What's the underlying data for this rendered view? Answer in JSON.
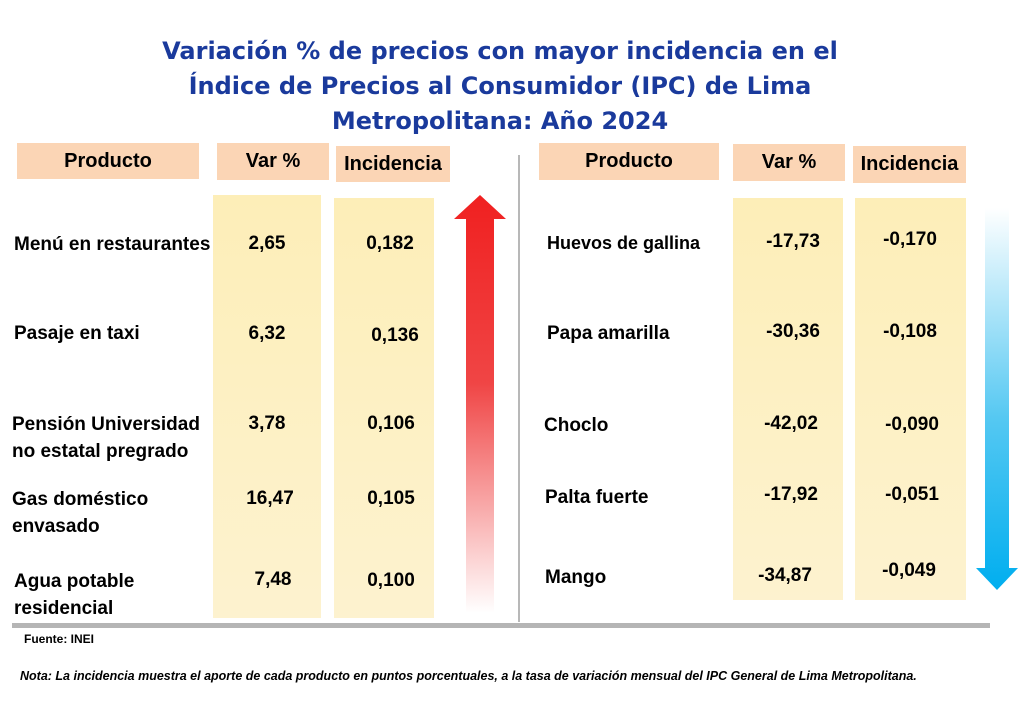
{
  "title": [
    "Variación % de precios con mayor incidencia en el",
    "Índice de Precios al Consumidor (IPC) de Lima",
    "Metropolitana: Año 2024"
  ],
  "headers": {
    "producto": "Producto",
    "var": "Var %",
    "incidencia": "Incidencia"
  },
  "increases": [
    {
      "producto": "Menú en restaurantes",
      "var": "2,65",
      "incidencia": "0,182"
    },
    {
      "producto": "Pasaje en taxi",
      "var": "6,32",
      "incidencia": "0,136"
    },
    {
      "producto": "Pensión Universidad no estatal pregrado",
      "var": "3,78",
      "incidencia": "0,106"
    },
    {
      "producto": "Gas doméstico envasado",
      "var": "16,47",
      "incidencia": "0,105"
    },
    {
      "producto": "Agua potable residencial",
      "var": "7,48",
      "incidencia": "0,100"
    }
  ],
  "decreases": [
    {
      "producto": "Huevos de gallina",
      "var": "-17,73",
      "incidencia": "-0,170"
    },
    {
      "producto": "Papa amarilla",
      "var": "-30,36",
      "incidencia": "-0,108"
    },
    {
      "producto": "Choclo",
      "var": "-42,02",
      "incidencia": "-0,090"
    },
    {
      "producto": "Palta fuerte",
      "var": "-17,92",
      "incidencia": "-0,051"
    },
    {
      "producto": "Mango",
      "var": "-34,87",
      "incidencia": "-0,049"
    }
  ],
  "source": "Fuente: INEI",
  "note": "Nota: La incidencia muestra el aporte de cada producto en puntos porcentuales, a la tasa de variación mensual del IPC General de Lima Metropolitana.",
  "colors": {
    "title": "#1a3a9c",
    "header_bg": "#fbd5b5",
    "column_bg": "#fdeeb8",
    "up_arrow": "#f02020",
    "down_arrow": "#00aeef"
  }
}
